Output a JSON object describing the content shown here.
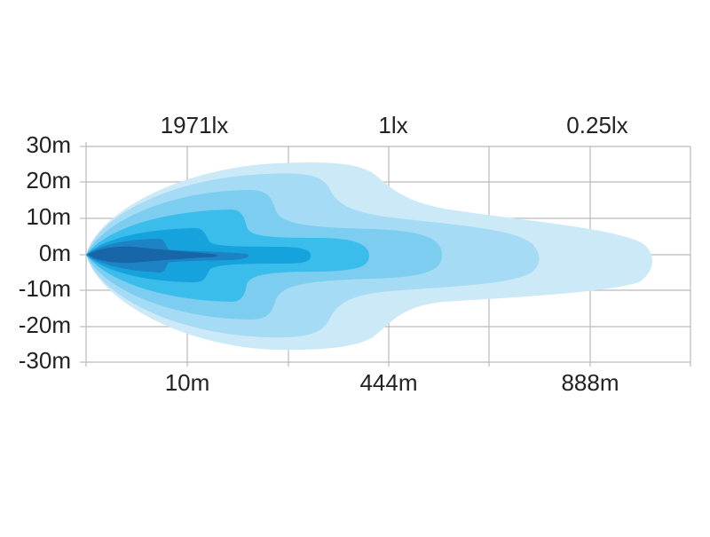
{
  "y_labels": [
    "30m",
    "20m",
    "10m",
    "0m",
    "-10m",
    "-20m",
    "-30m"
  ],
  "top_labels": [
    "1971lx",
    "1lx",
    "0.25lx"
  ],
  "bottom_labels": [
    "10m",
    "444m",
    "888m"
  ]
}
